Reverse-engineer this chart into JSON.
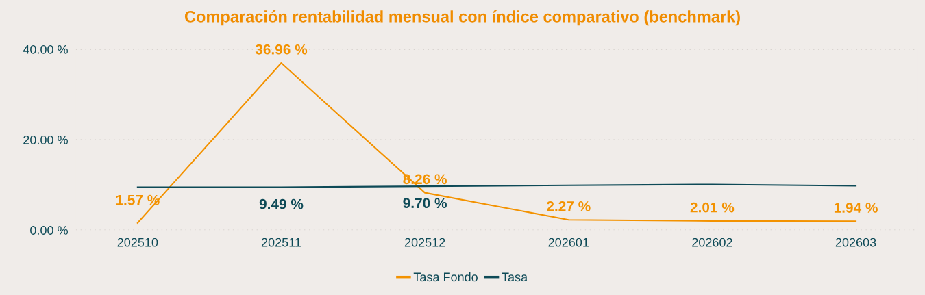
{
  "chart_data": {
    "type": "line",
    "title": "Comparación rentabilidad mensual con índice comparativo (benchmark)",
    "categories": [
      "202510",
      "202511",
      "202512",
      "202601",
      "202602",
      "202603"
    ],
    "series": [
      {
        "name": "Tasa Fondo",
        "color": "#f39200",
        "values": [
          1.57,
          36.96,
          8.26,
          2.27,
          2.01,
          1.94
        ],
        "value_labels": [
          "1.57 %",
          "36.96 %",
          "8.26 %",
          "2.27 %",
          "2.01 %",
          "1.94 %"
        ]
      },
      {
        "name": "Tasa",
        "color": "#0e4a57",
        "values": [
          9.5,
          9.49,
          9.7,
          9.9,
          10.1,
          9.8
        ],
        "value_labels": [
          null,
          "9.49 %",
          "9.70 %",
          null,
          null,
          null
        ]
      }
    ],
    "ylim": [
      0,
      40
    ],
    "yticks": [
      {
        "value": 0,
        "label": "0.00 %"
      },
      {
        "value": 20,
        "label": "20.00 %"
      },
      {
        "value": 40,
        "label": "40.00 %"
      }
    ],
    "grid": "y",
    "legend": "bottom",
    "marker": "none",
    "line_style": "solid"
  }
}
